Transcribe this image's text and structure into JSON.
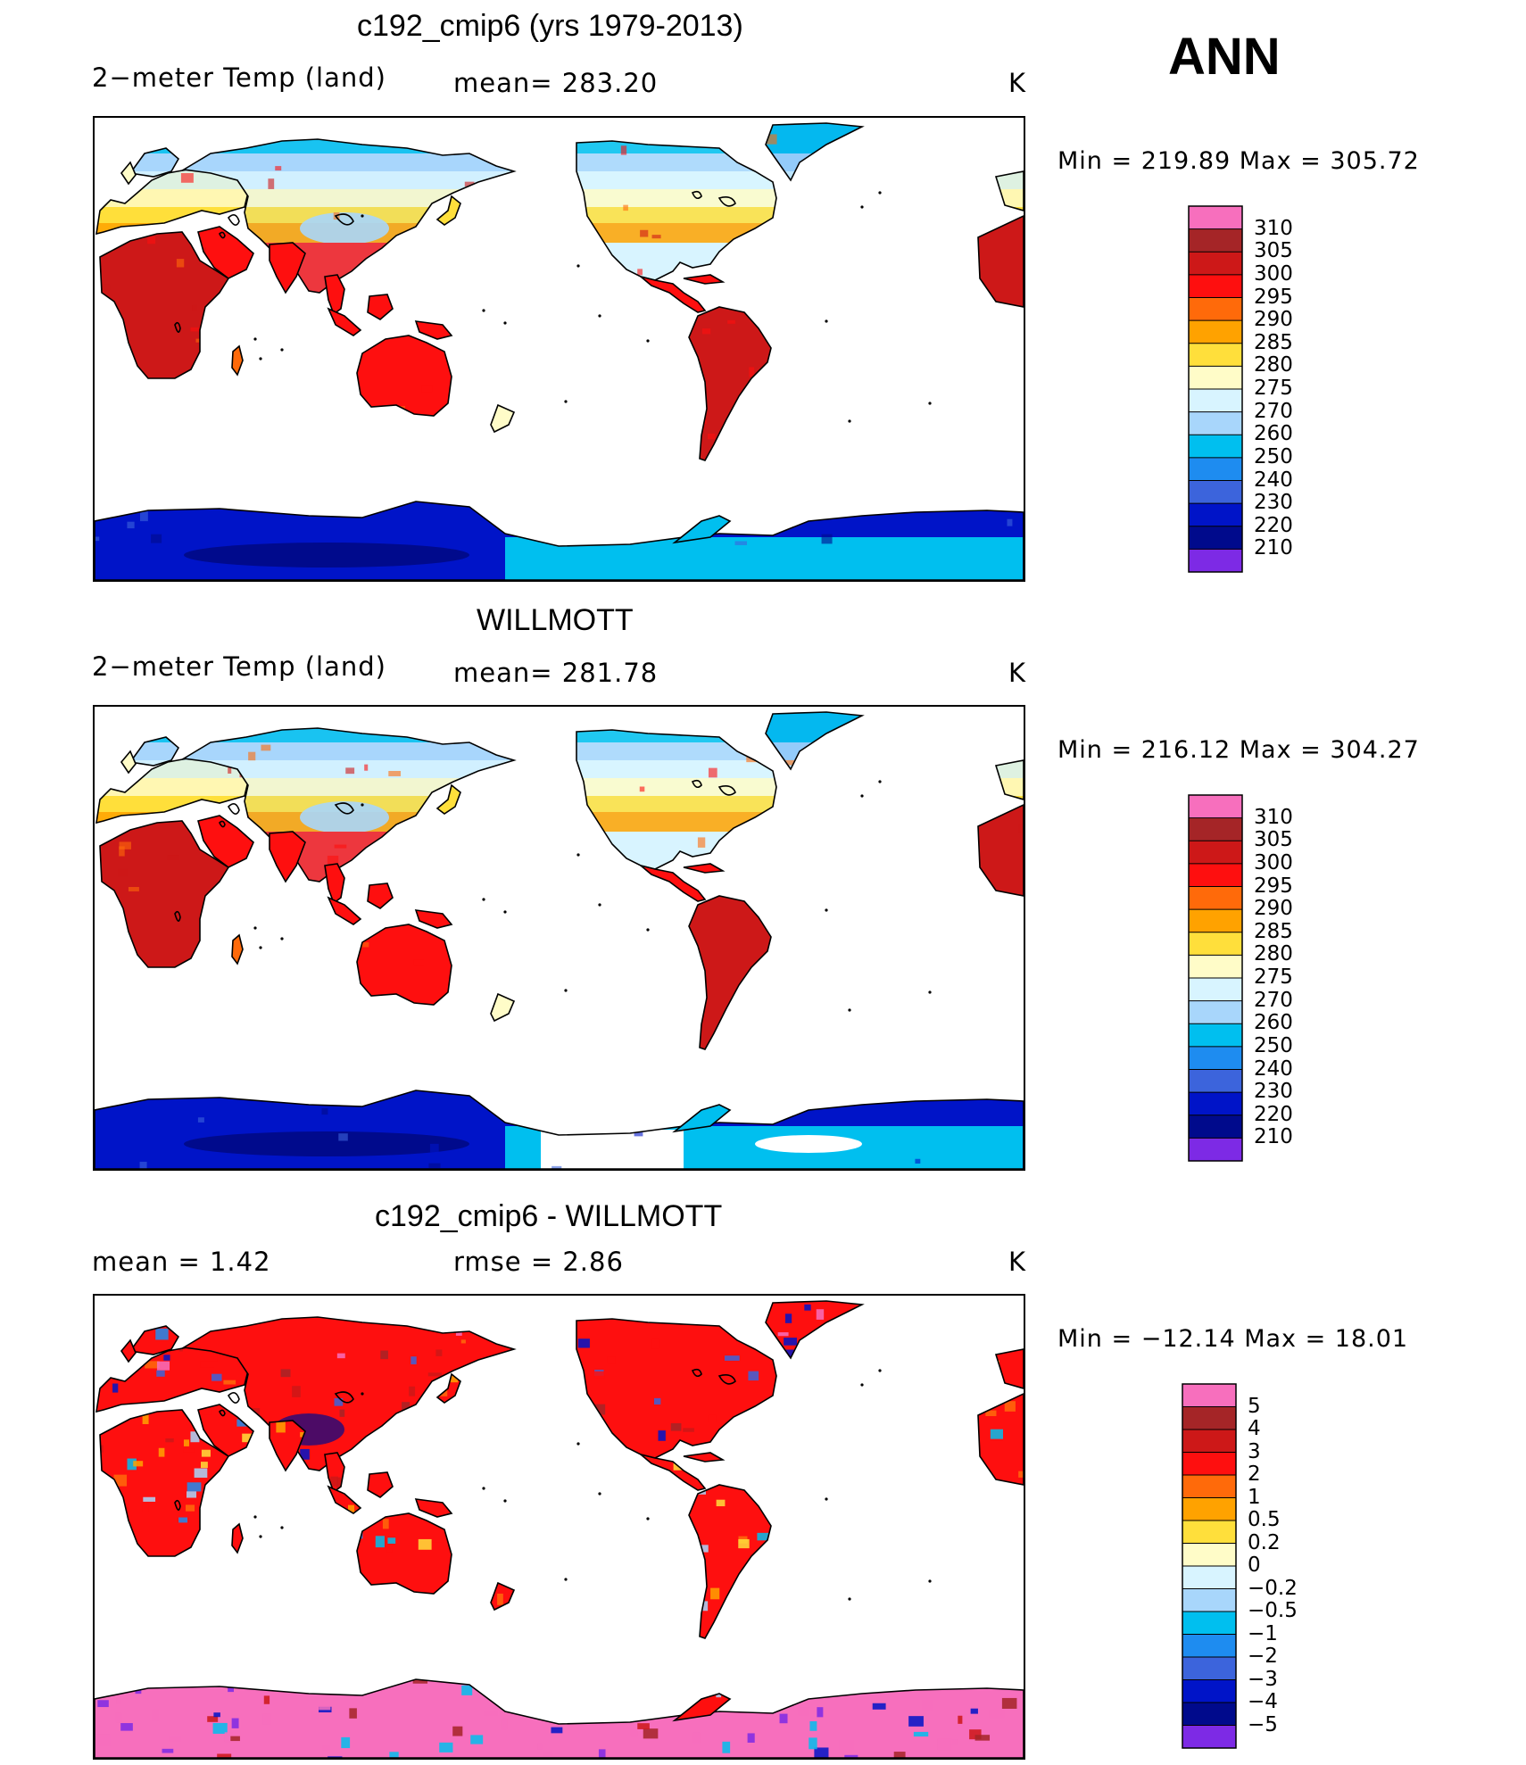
{
  "season": "ANN",
  "units": "K",
  "palette_abs": [
    "#f76fbd",
    "#a52527",
    "#cd1818",
    "#fe0f0f",
    "#ff6a0a",
    "#ffa200",
    "#ffdf3b",
    "#fffcc8",
    "#d8f4ff",
    "#a8d6fb",
    "#00bfef",
    "#1e8cf0",
    "#3c64dc",
    "#0014c8",
    "#000a8c",
    "#7d2ae5"
  ],
  "palette_diff": [
    "#f76fbd",
    "#a52527",
    "#cd1818",
    "#fe0f0f",
    "#ff6a0a",
    "#ffa200",
    "#ffdf3b",
    "#fffcc8",
    "#d8f4ff",
    "#a8d6fb",
    "#00bfef",
    "#1e8cf0",
    "#3c64dc",
    "#0014c8",
    "#000a8c",
    "#7d2ae5"
  ],
  "panels": [
    {
      "title": "c192_cmip6 (yrs 1979-2013)",
      "left_label": "2−meter Temp (land)",
      "center_label": "mean= 283.20",
      "units": "K",
      "minmax": "Min  =  219.89  Max  =  305.72",
      "levels": [
        "310",
        "305",
        "300",
        "295",
        "290",
        "285",
        "280",
        "275",
        "270",
        "260",
        "250",
        "240",
        "230",
        "220",
        "210"
      ],
      "field": "abs"
    },
    {
      "title": "WILLMOTT",
      "left_label": "2−meter Temp (land)",
      "center_label": "mean= 281.78",
      "units": "K",
      "minmax": "Min  =  216.12  Max  =  304.27",
      "levels": [
        "310",
        "305",
        "300",
        "295",
        "290",
        "285",
        "280",
        "275",
        "270",
        "260",
        "250",
        "240",
        "230",
        "220",
        "210"
      ],
      "field": "abs"
    },
    {
      "title": "c192_cmip6 - WILLMOTT",
      "left_label": "mean  =      1.42",
      "center_label": "rmse  =      2.86",
      "units": "K",
      "minmax": "Min  =  −12.14  Max  =    18.01",
      "levels": [
        "5",
        "4",
        "3",
        "2",
        "1",
        "0.5",
        "0.2",
        "0",
        "−0.2",
        "−0.5",
        "−1",
        "−2",
        "−3",
        "−4",
        "−5"
      ],
      "field": "diff"
    }
  ]
}
